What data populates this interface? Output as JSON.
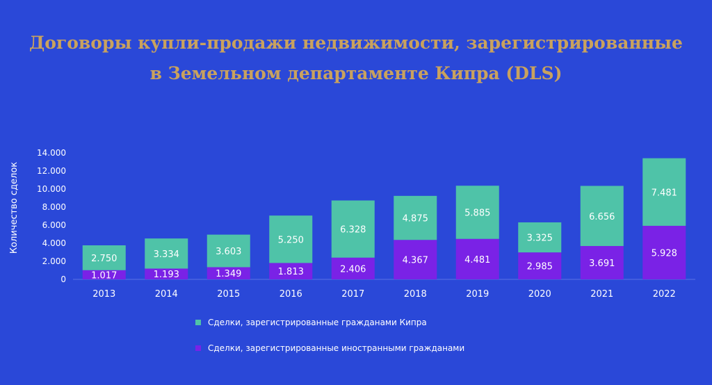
{
  "title": {
    "line1": "Договоры купли-продажи недвижимости, зарегистрированные",
    "line2": "в Земельном департаменте Кипра (DLS)"
  },
  "colors": {
    "background": "#2a48d8",
    "title": "#c9a25e",
    "cypriot": "#4fc3a8",
    "foreign": "#7a22e6"
  },
  "chart_data": {
    "type": "bar",
    "stacked": true,
    "categories": [
      "2013",
      "2014",
      "2015",
      "2016",
      "2017",
      "2018",
      "2019",
      "2020",
      "2021",
      "2022"
    ],
    "series": [
      {
        "name": "Сделки, зарегистрированные иностранными гражданами",
        "values": [
          1017,
          1193,
          1349,
          1813,
          2406,
          4367,
          4481,
          2985,
          3691,
          5928
        ],
        "labels": [
          "1.017",
          "1.193",
          "1.349",
          "1.813",
          "2.406",
          "4.367",
          "4.481",
          "2.985",
          "3.691",
          "5.928"
        ]
      },
      {
        "name": "Сделки, зарегистрированные гражданами Кипра",
        "values": [
          2750,
          3334,
          3603,
          5250,
          6328,
          4875,
          5885,
          3325,
          6656,
          7481
        ],
        "labels": [
          "2.750",
          "3.334",
          "3.603",
          "5.250",
          "6.328",
          "4.875",
          "5.885",
          "3.325",
          "6.656",
          "7.481"
        ]
      }
    ],
    "ylabel": "Количество сделок",
    "ylim": [
      0,
      14000
    ],
    "yticks": [
      0,
      2000,
      4000,
      6000,
      8000,
      10000,
      12000,
      14000
    ],
    "ytick_labels": [
      "0",
      "2.000",
      "4.000",
      "6.000",
      "8.000",
      "10.000",
      "12.000",
      "14.000"
    ],
    "legend_placement": "bottom",
    "grid": false
  }
}
